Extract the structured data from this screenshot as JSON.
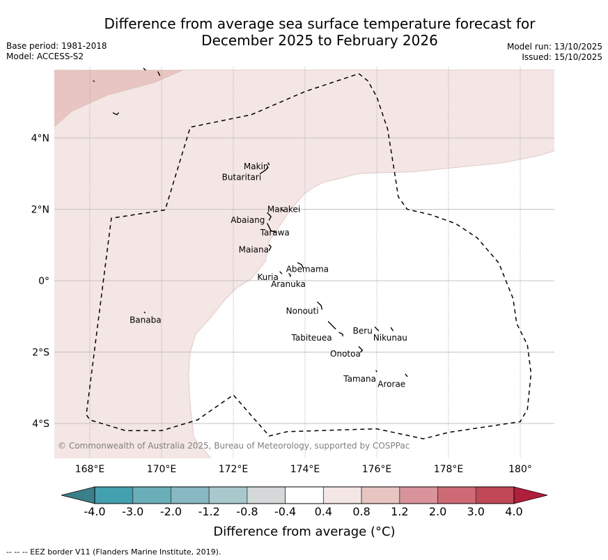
{
  "title_line1": "Difference from average sea surface temperature forecast for",
  "title_line2": "December 2025 to February 2026",
  "meta_left": {
    "base_period": "Base period: 1981-2018",
    "model": "Model: ACCESS-S2"
  },
  "meta_right": {
    "model_run": "Model run: 13/10/2025",
    "issued": "Issued: 15/10/2025"
  },
  "copyright": "© Commonwealth of Australia 2025, Bureau of Meteorology, supported by COSPPac",
  "footnote": "--  --  -- EEZ border V11 (Flanders Marine Institute, 2019).",
  "chart_data": {
    "type": "heatmap",
    "title": "Difference from average sea surface temperature forecast for December 2025 to February 2026",
    "extent": {
      "lon_min": 167.0,
      "lon_max": 181.0,
      "lat_min": -5.0,
      "lat_max": 5.95
    },
    "x_ticks": [
      {
        "value": 168,
        "label": "168°E"
      },
      {
        "value": 170,
        "label": "170°E"
      },
      {
        "value": 172,
        "label": "172°E"
      },
      {
        "value": 174,
        "label": "174°E"
      },
      {
        "value": 176,
        "label": "176°E"
      },
      {
        "value": 178,
        "label": "178°E"
      },
      {
        "value": 180,
        "label": "180°"
      }
    ],
    "y_ticks": [
      {
        "value": 4,
        "label": "4°N"
      },
      {
        "value": 2,
        "label": "2°N"
      },
      {
        "value": 0,
        "label": "0°"
      },
      {
        "value": -2,
        "label": "2°S"
      },
      {
        "value": -4,
        "label": "4°S"
      }
    ],
    "grid": true,
    "colorbar": {
      "label": "Difference from average (°C)",
      "bounds": [
        -4.0,
        -3.0,
        -2.0,
        -1.2,
        -0.8,
        -0.4,
        0.4,
        0.8,
        1.2,
        2.0,
        3.0,
        4.0
      ],
      "tick_labels": [
        "-4.0",
        "-3.0",
        "-2.0",
        "-1.2",
        "-0.8",
        "-0.4",
        "0.4",
        "0.8",
        "1.2",
        "2.0",
        "3.0",
        "4.0"
      ],
      "colors": [
        "#43a0ae",
        "#6aaeb9",
        "#88b8c2",
        "#a8c8cc",
        "#d4d8d9",
        "#ffffff",
        "#f3e6e4",
        "#e8c5c0",
        "#d9939a",
        "#cd6a75",
        "#c04857"
      ],
      "under_color": "#3a7f89",
      "over_color": "#b11f3c",
      "extend": "both"
    },
    "regions": [
      {
        "category": "0.8 to 1.2",
        "color": "#e8c5c0",
        "polygon": [
          [
            167.0,
            4.3
          ],
          [
            167.5,
            4.75
          ],
          [
            168.5,
            5.2
          ],
          [
            169.8,
            5.55
          ],
          [
            170.6,
            5.9
          ],
          [
            167.0,
            5.9
          ]
        ]
      },
      {
        "category": "0.4 to 0.8",
        "color": "#f3e6e4",
        "polygon": [
          [
            167.0,
            4.3
          ],
          [
            167.5,
            4.75
          ],
          [
            168.5,
            5.2
          ],
          [
            169.8,
            5.55
          ],
          [
            170.6,
            5.9
          ],
          [
            181.0,
            5.9
          ],
          [
            181.0,
            3.65
          ],
          [
            180.5,
            3.5
          ],
          [
            179.5,
            3.3
          ],
          [
            178.5,
            3.2
          ],
          [
            177.0,
            3.05
          ],
          [
            176.0,
            3.02
          ],
          [
            175.5,
            3.0
          ],
          [
            174.5,
            2.75
          ],
          [
            174.3,
            2.65
          ],
          [
            174.0,
            2.45
          ],
          [
            173.6,
            2.0
          ],
          [
            173.3,
            1.55
          ],
          [
            173.0,
            1.1
          ],
          [
            172.9,
            0.55
          ],
          [
            172.5,
            0.05
          ],
          [
            172.1,
            -0.2
          ],
          [
            171.75,
            -0.55
          ],
          [
            171.4,
            -1.0
          ],
          [
            170.95,
            -1.5
          ],
          [
            170.8,
            -2.0
          ],
          [
            170.75,
            -2.65
          ],
          [
            170.8,
            -3.5
          ],
          [
            170.9,
            -4.4
          ],
          [
            171.4,
            -5.0
          ],
          [
            171.9,
            -5.3
          ],
          [
            167.0,
            -5.3
          ]
        ]
      },
      {
        "category": "-0.4 to 0.4",
        "color": "#ffffff",
        "note": "remainder of domain"
      }
    ],
    "eez_border": [
      [
        175.5,
        5.8
      ],
      [
        175.75,
        5.6
      ],
      [
        176.0,
        5.15
      ],
      [
        176.3,
        4.25
      ],
      [
        176.5,
        3.0
      ],
      [
        176.6,
        2.35
      ],
      [
        176.85,
        2.0
      ],
      [
        177.5,
        1.85
      ],
      [
        178.2,
        1.6
      ],
      [
        178.8,
        1.2
      ],
      [
        179.4,
        0.5
      ],
      [
        179.8,
        -0.5
      ],
      [
        179.9,
        -1.2
      ],
      [
        180.2,
        -1.8
      ],
      [
        180.3,
        -2.6
      ],
      [
        180.2,
        -3.6
      ],
      [
        180.0,
        -3.95
      ],
      [
        178.0,
        -4.25
      ],
      [
        177.3,
        -4.43
      ],
      [
        176.0,
        -4.15
      ],
      [
        175.0,
        -4.18
      ],
      [
        173.5,
        -4.23
      ],
      [
        173.0,
        -4.35
      ],
      [
        172.0,
        -3.2
      ],
      [
        171.0,
        -3.9
      ],
      [
        170.0,
        -4.2
      ],
      [
        169.0,
        -4.2
      ],
      [
        168.0,
        -3.9
      ],
      [
        167.9,
        -3.75
      ],
      [
        168.6,
        1.75
      ],
      [
        170.1,
        1.98
      ],
      [
        170.8,
        4.3
      ],
      [
        172.5,
        4.65
      ],
      [
        174.0,
        5.3
      ],
      [
        175.5,
        5.8
      ]
    ],
    "places": [
      {
        "name": "Makin",
        "lon": 172.98,
        "lat": 3.2,
        "anchor": "end"
      },
      {
        "name": "Butaritari",
        "lon": 172.78,
        "lat": 2.9,
        "anchor": "end"
      },
      {
        "name": "Marakei",
        "lon": 172.95,
        "lat": 2.0,
        "anchor": "start"
      },
      {
        "name": "Abaiang",
        "lon": 172.88,
        "lat": 1.7,
        "anchor": "end"
      },
      {
        "name": "Tarawa",
        "lon": 172.75,
        "lat": 1.35,
        "anchor": "start"
      },
      {
        "name": "Maiana",
        "lon": 172.99,
        "lat": 0.87,
        "anchor": "end"
      },
      {
        "name": "Abemama",
        "lon": 173.47,
        "lat": 0.32,
        "anchor": "start"
      },
      {
        "name": "Kuria",
        "lon": 173.26,
        "lat": 0.1,
        "anchor": "end"
      },
      {
        "name": "Aranuka",
        "lon": 173.05,
        "lat": -0.1,
        "anchor": "start"
      },
      {
        "name": "Nonouti",
        "lon": 174.38,
        "lat": -0.85,
        "anchor": "end"
      },
      {
        "name": "Tabiteuea",
        "lon": 174.75,
        "lat": -1.6,
        "anchor": "end"
      },
      {
        "name": "Beru",
        "lon": 175.88,
        "lat": -1.4,
        "anchor": "end"
      },
      {
        "name": "Nikunau",
        "lon": 175.9,
        "lat": -1.6,
        "anchor": "start"
      },
      {
        "name": "Onotoa",
        "lon": 175.55,
        "lat": -2.05,
        "anchor": "end"
      },
      {
        "name": "Tamana",
        "lon": 175.98,
        "lat": -2.75,
        "anchor": "end"
      },
      {
        "name": "Arorae",
        "lon": 176.8,
        "lat": -2.9,
        "anchor": "end"
      },
      {
        "name": "Banaba",
        "lon": 169.55,
        "lat": -1.1,
        "anchor": "middle"
      }
    ],
    "islands": [
      [
        [
          172.97,
          3.3
        ],
        [
          173.0,
          3.25
        ]
      ],
      [
        [
          172.75,
          3.0
        ],
        [
          172.9,
          3.1
        ],
        [
          172.97,
          3.18
        ]
      ],
      [
        [
          173.35,
          2.0
        ],
        [
          173.4,
          1.95
        ]
      ],
      [
        [
          172.95,
          1.9
        ],
        [
          173.05,
          1.8
        ],
        [
          173.0,
          1.7
        ]
      ],
      [
        [
          172.95,
          1.6
        ],
        [
          173.05,
          1.4
        ],
        [
          173.2,
          1.35
        ]
      ],
      [
        [
          173.0,
          1.0
        ],
        [
          173.05,
          0.95
        ],
        [
          173.0,
          0.85
        ]
      ],
      [
        [
          173.8,
          0.5
        ],
        [
          173.9,
          0.45
        ],
        [
          173.95,
          0.35
        ]
      ],
      [
        [
          173.3,
          0.25
        ],
        [
          173.35,
          0.2
        ]
      ],
      [
        [
          173.55,
          0.2
        ],
        [
          173.6,
          0.15
        ],
        [
          173.58,
          0.12
        ]
      ],
      [
        [
          174.35,
          -0.6
        ],
        [
          174.45,
          -0.7
        ],
        [
          174.47,
          -0.8
        ]
      ],
      [
        [
          174.65,
          -1.15
        ],
        [
          174.8,
          -1.3
        ],
        [
          174.85,
          -1.35
        ]
      ],
      [
        [
          174.95,
          -1.45
        ],
        [
          175.05,
          -1.5
        ],
        [
          175.05,
          -1.55
        ]
      ],
      [
        [
          175.95,
          -1.3
        ],
        [
          176.0,
          -1.35
        ],
        [
          176.05,
          -1.4
        ]
      ],
      [
        [
          176.4,
          -1.32
        ],
        [
          176.45,
          -1.4
        ]
      ],
      [
        [
          175.5,
          -1.85
        ],
        [
          175.6,
          -1.95
        ],
        [
          175.55,
          -2.0
        ]
      ],
      [
        [
          175.98,
          -2.52
        ],
        [
          176.0,
          -2.55
        ]
      ],
      [
        [
          176.8,
          -2.62
        ],
        [
          176.85,
          -2.68
        ]
      ],
      [
        [
          169.52,
          -0.88
        ],
        [
          169.54,
          -0.9
        ]
      ],
      [
        [
          168.1,
          5.6
        ],
        [
          168.12,
          5.58
        ]
      ],
      [
        [
          168.65,
          4.7
        ],
        [
          168.75,
          4.65
        ],
        [
          168.8,
          4.7
        ]
      ],
      [
        [
          169.9,
          5.85
        ],
        [
          169.95,
          5.75
        ]
      ],
      [
        [
          169.5,
          5.95
        ],
        [
          169.55,
          5.9
        ]
      ]
    ]
  }
}
